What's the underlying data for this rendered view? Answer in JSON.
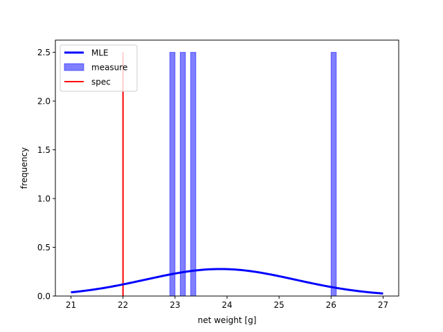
{
  "chart_data": {
    "type": "bar",
    "title": "",
    "xlabel": "net weight [g]",
    "ylabel": "frequency",
    "xlim": [
      20.7,
      27.3
    ],
    "ylim": [
      0,
      2.625
    ],
    "xticks": [
      21,
      22,
      23,
      24,
      25,
      26,
      27
    ],
    "yticks": [
      0.0,
      0.5,
      1.0,
      1.5,
      2.0,
      2.5
    ],
    "grid": false,
    "legend_position": "top-left",
    "series": [
      {
        "name": "MLE",
        "type": "line",
        "color": "#0000ff",
        "mean": 23.87,
        "std": 1.44,
        "x_range": [
          21,
          27
        ]
      },
      {
        "name": "measure",
        "type": "bar",
        "color": "#0000ff",
        "opacity": 0.5,
        "bars": [
          {
            "x0": 22.9,
            "x1": 23.0,
            "value": 2.5
          },
          {
            "x0": 23.1,
            "x1": 23.2,
            "value": 2.5
          },
          {
            "x0": 23.3,
            "x1": 23.4,
            "value": 2.5
          },
          {
            "x0": 26.0,
            "x1": 26.1,
            "value": 2.5
          }
        ]
      },
      {
        "name": "spec",
        "type": "vline",
        "color": "#ff0000",
        "x": 22,
        "y_range": [
          0,
          2.5
        ]
      }
    ]
  }
}
